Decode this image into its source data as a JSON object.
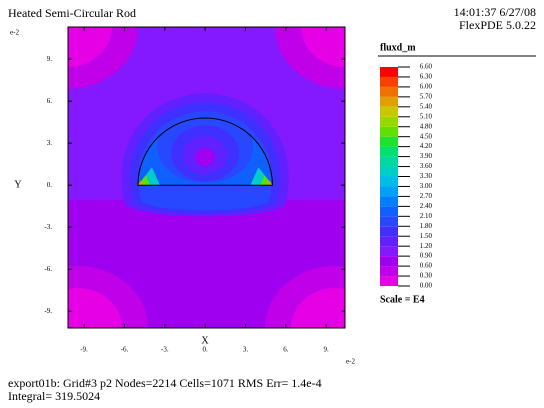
{
  "chart_data": {
    "type": "contour",
    "title": "Heated Semi-Circular Rod",
    "timestamp": "14:01:37 6/27/08",
    "software": "FlexPDE 5.0.22",
    "variable": "fluxd_m",
    "x_label": "X",
    "y_label": "Y",
    "x_exponent": "e-2",
    "y_exponent": "e-2",
    "xlim": [
      -10.2,
      10.4
    ],
    "ylim": [
      -10.2,
      11.3
    ],
    "xticks": [
      {
        "value": -9,
        "label": "-9."
      },
      {
        "value": -6,
        "label": "-6."
      },
      {
        "value": -3,
        "label": "-3."
      },
      {
        "value": 0,
        "label": "0."
      },
      {
        "value": 3,
        "label": "3."
      },
      {
        "value": 6,
        "label": "6."
      },
      {
        "value": 9,
        "label": "9."
      }
    ],
    "yticks": [
      {
        "value": -9,
        "label": "-9."
      },
      {
        "value": -6,
        "label": "-6."
      },
      {
        "value": -3,
        "label": "-3."
      },
      {
        "value": 0,
        "label": "0."
      },
      {
        "value": 3,
        "label": "3."
      },
      {
        "value": 6,
        "label": "6."
      },
      {
        "value": 9,
        "label": "9."
      }
    ],
    "levels": [
      {
        "value": 0,
        "label": "0.00"
      },
      {
        "value": 0.3,
        "label": "0.30"
      },
      {
        "value": 0.6,
        "label": "0.60"
      },
      {
        "value": 0.9,
        "label": "0.90"
      },
      {
        "value": 1.2,
        "label": "1.20"
      },
      {
        "value": 1.5,
        "label": "1.50"
      },
      {
        "value": 1.8,
        "label": "1.80"
      },
      {
        "value": 2.1,
        "label": "2.10"
      },
      {
        "value": 2.4,
        "label": "2.40"
      },
      {
        "value": 2.7,
        "label": "2.70"
      },
      {
        "value": 3,
        "label": "3.00"
      },
      {
        "value": 3.3,
        "label": "3.30"
      },
      {
        "value": 3.6,
        "label": "3.60"
      },
      {
        "value": 3.9,
        "label": "3.90"
      },
      {
        "value": 4.2,
        "label": "4.20"
      },
      {
        "value": 4.5,
        "label": "4.50"
      },
      {
        "value": 4.8,
        "label": "4.80"
      },
      {
        "value": 5.1,
        "label": "5.10"
      },
      {
        "value": 5.4,
        "label": "5.40"
      },
      {
        "value": 5.7,
        "label": "5.70"
      },
      {
        "value": 6,
        "label": "6.00"
      },
      {
        "value": 6.3,
        "label": "6.30"
      },
      {
        "value": 6.6,
        "label": "6.60"
      }
    ],
    "colors": [
      "#e600e6",
      "#c000e8",
      "#a000f0",
      "#8418ff",
      "#6020ff",
      "#4030ff",
      "#2848ff",
      "#1060ff",
      "#0080ff",
      "#00a0f8",
      "#00bce8",
      "#00ccc8",
      "#00d8a0",
      "#00e070",
      "#20e030",
      "#60e000",
      "#98d800",
      "#c8c800",
      "#e0a000",
      "#f07000",
      "#f84000",
      "#ff0000"
    ],
    "scale_label": "Scale = E4",
    "footer": [
      "export01b:  Grid#3  p2  Nodes=2214 Cells=1071 RMS Err= 1.4e-4",
      "Integral=  319.5024"
    ]
  }
}
